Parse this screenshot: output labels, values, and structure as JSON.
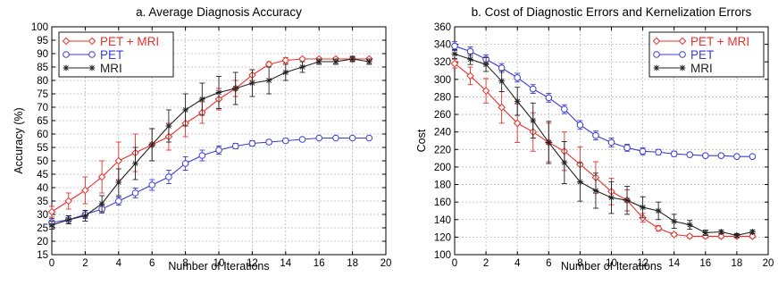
{
  "colors": {
    "pet_mri": "#e8302a",
    "pet": "#3b3bd6",
    "mri": "#222222",
    "grid": "#b8b8b8"
  },
  "chart_data": [
    {
      "type": "line",
      "title": "a. Average Diagnosis Accuracy",
      "xlabel": "Number of Iterations",
      "ylabel": "Accuracy (%)",
      "xlim": [
        0,
        20
      ],
      "ylim": [
        15,
        100
      ],
      "xticks": [
        0,
        2,
        4,
        6,
        8,
        10,
        12,
        14,
        16,
        18,
        20
      ],
      "yticks": [
        15,
        20,
        25,
        30,
        35,
        40,
        45,
        50,
        55,
        60,
        65,
        70,
        75,
        80,
        85,
        90,
        95,
        100
      ],
      "grid": true,
      "legend_position": "top-left",
      "x": [
        0,
        1,
        2,
        3,
        4,
        5,
        6,
        7,
        8,
        9,
        10,
        11,
        12,
        13,
        14,
        15,
        16,
        17,
        18,
        19
      ],
      "series": [
        {
          "name": "PET + MRI",
          "marker": "diamond",
          "color": "#e8302a",
          "values": [
            31,
            35,
            39,
            44,
            50,
            53,
            56,
            59,
            64,
            68,
            73,
            77,
            82,
            86,
            87.5,
            88,
            88,
            88,
            88,
            88
          ],
          "errors": [
            2,
            3,
            5,
            6,
            7,
            7,
            6,
            5,
            5,
            4,
            4,
            3,
            2,
            1,
            1,
            0.5,
            0.5,
            0.5,
            0.5,
            0.5
          ]
        },
        {
          "name": "PET",
          "marker": "circle",
          "color": "#3b3bd6",
          "values": [
            27,
            28,
            30,
            32,
            35,
            38,
            41,
            44,
            49,
            52,
            54,
            55.5,
            56.5,
            57,
            57.5,
            58,
            58.5,
            58.5,
            58.5,
            58.5
          ],
          "errors": [
            1.5,
            1.5,
            1.5,
            1.5,
            1.5,
            1.8,
            2,
            2.5,
            2.5,
            2,
            1.5,
            1,
            1,
            0.8,
            0.8,
            0.6,
            0.5,
            0.5,
            0.5,
            0.5
          ]
        },
        {
          "name": "MRI",
          "marker": "star",
          "color": "#222222",
          "values": [
            26,
            28,
            29.5,
            34,
            42,
            49,
            56,
            63,
            69,
            73,
            75.5,
            77,
            79,
            80,
            83,
            85,
            87,
            87,
            88,
            87
          ],
          "errors": [
            1.5,
            1.5,
            2,
            3,
            5,
            6,
            6,
            6,
            6,
            6,
            6,
            6,
            5,
            5,
            3,
            2,
            1,
            1,
            1,
            1
          ]
        }
      ]
    },
    {
      "type": "line",
      "title": "b. Cost of Diagnostic Errors and Kernelization Errors",
      "xlabel": "Number of Iterations",
      "ylabel": "Cost",
      "xlim": [
        0,
        20
      ],
      "ylim": [
        100,
        360
      ],
      "xticks": [
        0,
        2,
        4,
        6,
        8,
        10,
        12,
        14,
        16,
        18,
        20
      ],
      "yticks": [
        100,
        120,
        140,
        160,
        180,
        200,
        220,
        240,
        260,
        280,
        300,
        320,
        340,
        360
      ],
      "grid": true,
      "legend_position": "top-right",
      "x": [
        0,
        1,
        2,
        3,
        4,
        5,
        6,
        7,
        8,
        9,
        10,
        11,
        12,
        13,
        14,
        15,
        16,
        17,
        18,
        19
      ],
      "series": [
        {
          "name": "PET + MRI",
          "marker": "diamond",
          "color": "#e8302a",
          "values": [
            318,
            304,
            287,
            268,
            250,
            240,
            228,
            218,
            203,
            188,
            172,
            162,
            142,
            130,
            123,
            121,
            121,
            121,
            121,
            121
          ],
          "errors": [
            5,
            10,
            14,
            18,
            22,
            22,
            22,
            22,
            20,
            18,
            15,
            12,
            5,
            3,
            2,
            2,
            2,
            2,
            2,
            2
          ]
        },
        {
          "name": "PET",
          "marker": "circle",
          "color": "#3b3bd6",
          "values": [
            338,
            332,
            323,
            313,
            302,
            289,
            279,
            266,
            248,
            236,
            228,
            222,
            218,
            217,
            215,
            214,
            213,
            213,
            212,
            212
          ],
          "errors": [
            5,
            5,
            5,
            5,
            5,
            5,
            5,
            5,
            5,
            5,
            5,
            4,
            4,
            3,
            3,
            2,
            2,
            2,
            2,
            2
          ]
        },
        {
          "name": "MRI",
          "marker": "star",
          "color": "#222222",
          "values": [
            329,
            323,
            317,
            298,
            275,
            253,
            228,
            205,
            183,
            173,
            165,
            162,
            154,
            150,
            138,
            134,
            125,
            126,
            122,
            126
          ],
          "errors": [
            5,
            6,
            8,
            12,
            16,
            20,
            24,
            24,
            22,
            20,
            18,
            16,
            12,
            10,
            8,
            5,
            3,
            2,
            2,
            2
          ]
        }
      ]
    }
  ]
}
